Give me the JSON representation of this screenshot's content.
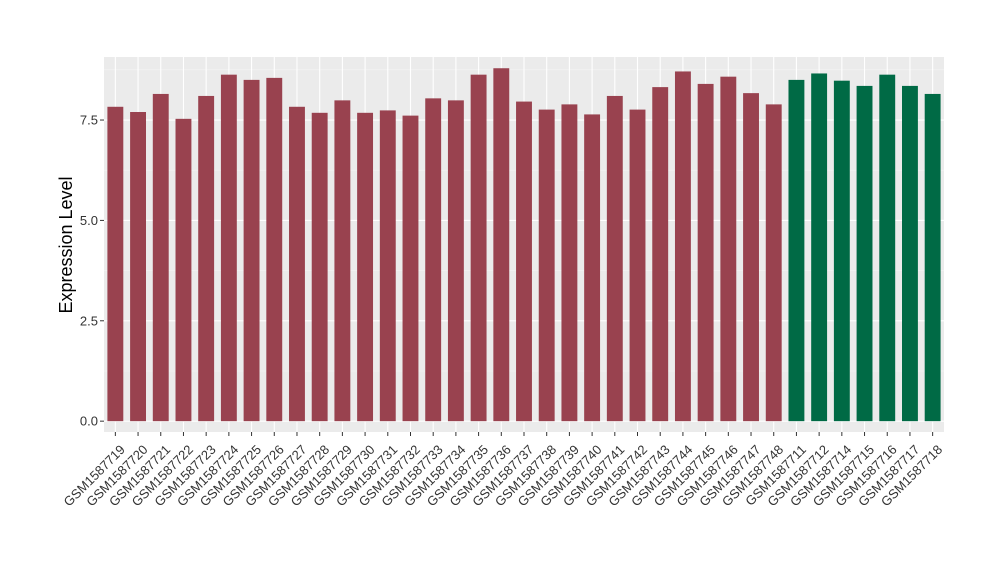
{
  "chart_data": {
    "type": "bar",
    "title": "",
    "xlabel": "",
    "ylabel": "Expression Level",
    "ylim": [
      -0.27,
      9.07
    ],
    "yticks": [
      0.0,
      2.5,
      5.0,
      7.5
    ],
    "ytick_labels": [
      "0.0",
      "2.5",
      "5.0",
      "7.5"
    ],
    "grid": true,
    "panel_background": "#ebebeb",
    "categories": [
      "GSM1587719",
      "GSM1587720",
      "GSM1587721",
      "GSM1587722",
      "GSM1587723",
      "GSM1587724",
      "GSM1587725",
      "GSM1587726",
      "GSM1587727",
      "GSM1587728",
      "GSM1587729",
      "GSM1587730",
      "GSM1587731",
      "GSM1587732",
      "GSM1587733",
      "GSM1587734",
      "GSM1587735",
      "GSM1587736",
      "GSM1587737",
      "GSM1587738",
      "GSM1587739",
      "GSM1587740",
      "GSM1587741",
      "GSM1587742",
      "GSM1587743",
      "GSM1587744",
      "GSM1587745",
      "GSM1587746",
      "GSM1587747",
      "GSM1587748",
      "GSM1587711",
      "GSM1587712",
      "GSM1587714",
      "GSM1587715",
      "GSM1587716",
      "GSM1587717",
      "GSM1587718"
    ],
    "values": [
      7.83,
      7.7,
      8.15,
      7.53,
      8.1,
      8.63,
      8.5,
      8.55,
      7.83,
      7.68,
      7.99,
      7.68,
      7.74,
      7.61,
      8.04,
      7.99,
      8.63,
      8.79,
      7.96,
      7.76,
      7.89,
      7.64,
      8.1,
      7.76,
      8.32,
      8.71,
      8.4,
      8.58,
      8.17,
      7.89,
      8.5,
      8.66,
      8.48,
      8.35,
      8.63,
      8.35,
      8.15
    ],
    "bar_colors": [
      "#99424f",
      "#99424f",
      "#99424f",
      "#99424f",
      "#99424f",
      "#99424f",
      "#99424f",
      "#99424f",
      "#99424f",
      "#99424f",
      "#99424f",
      "#99424f",
      "#99424f",
      "#99424f",
      "#99424f",
      "#99424f",
      "#99424f",
      "#99424f",
      "#99424f",
      "#99424f",
      "#99424f",
      "#99424f",
      "#99424f",
      "#99424f",
      "#99424f",
      "#99424f",
      "#99424f",
      "#99424f",
      "#99424f",
      "#99424f",
      "#006a45",
      "#006a45",
      "#006a45",
      "#006a45",
      "#006a45",
      "#006a45",
      "#006a45"
    ]
  }
}
